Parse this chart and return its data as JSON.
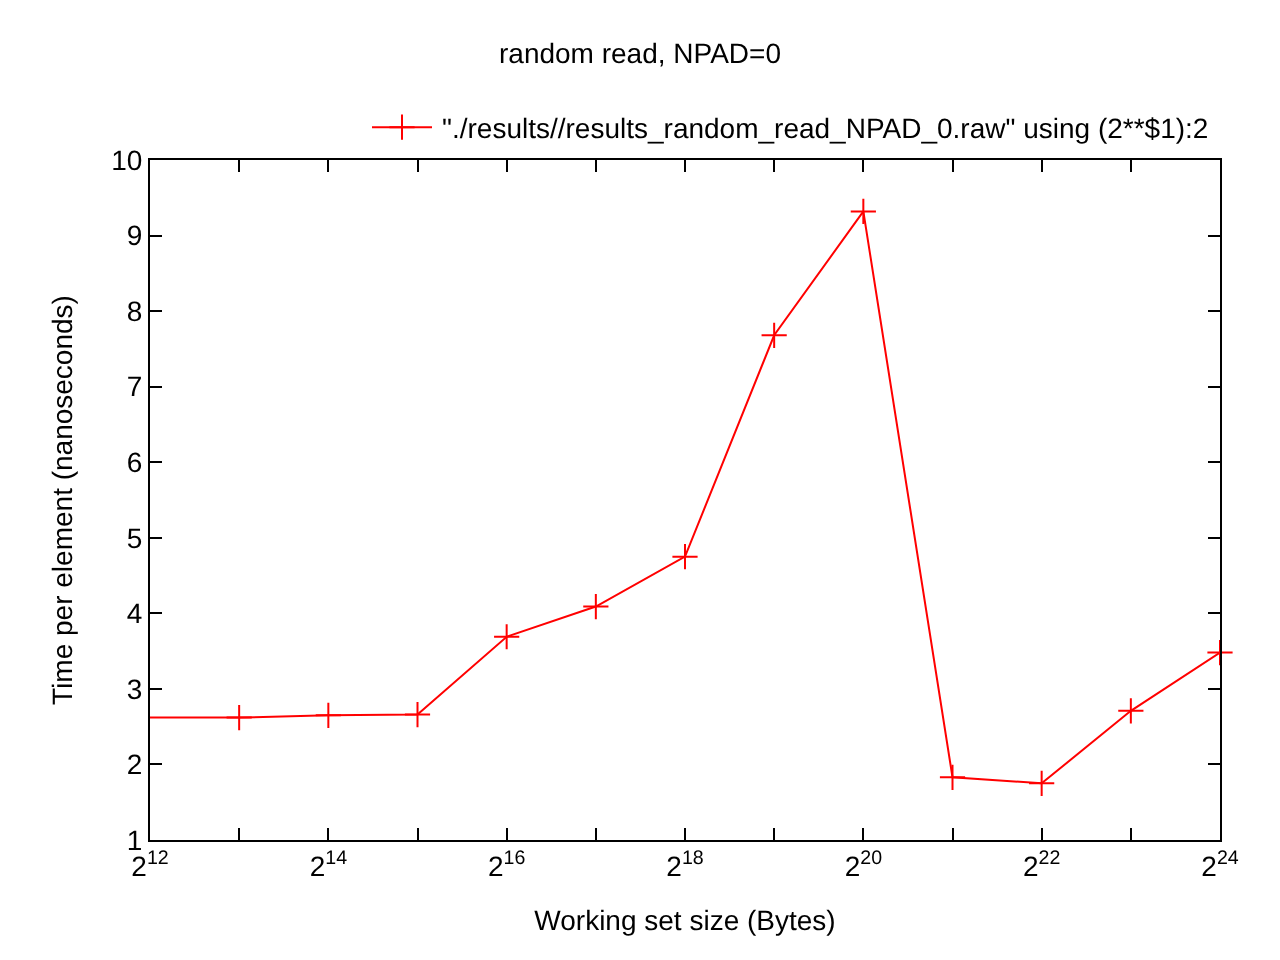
{
  "chart_data": {
    "type": "line",
    "title": "random read, NPAD=0",
    "xlabel": "Working set size (Bytes)",
    "ylabel": "Time per element (nanoseconds)",
    "x": [
      4096,
      8192,
      16384,
      32768,
      65536,
      131072,
      262144,
      524288,
      1048576,
      2097152,
      4194304,
      8388608,
      16777216
    ],
    "series": [
      {
        "name": "\"./results//results_random_read_NPAD_0.raw\" using (2**$1):2",
        "color": "#ff0000",
        "values": [
          2.62,
          2.62,
          2.65,
          2.66,
          3.69,
          4.09,
          4.75,
          7.68,
          9.32,
          1.83,
          1.75,
          2.71,
          3.48
        ]
      }
    ],
    "log": "x",
    "xlim": [
      4096,
      16777216
    ],
    "xticks": [
      {
        "value": 4096,
        "label": "2$^{12}$"
      },
      {
        "value": 8192,
        "label": null
      },
      {
        "value": 16384,
        "label": "2$^{14}$"
      },
      {
        "value": 32768,
        "label": null
      },
      {
        "value": 65536,
        "label": "2$^{16}$"
      },
      {
        "value": 131072,
        "label": null
      },
      {
        "value": 262144,
        "label": "2$^{18}$"
      },
      {
        "value": 524288,
        "label": null
      },
      {
        "value": 1048576,
        "label": "2$^{20}$"
      },
      {
        "value": 2097152,
        "label": null
      },
      {
        "value": 4194304,
        "label": "2$^{22}$"
      },
      {
        "value": 8388608,
        "label": null
      },
      {
        "value": 16777216,
        "label": "2$^{24}$"
      }
    ],
    "ylim": [
      1,
      10
    ],
    "yticks": [
      1,
      2,
      3,
      4,
      5,
      6,
      7,
      8,
      9,
      10
    ],
    "legend": "top right",
    "marker": "cross",
    "line_style": "solid"
  }
}
